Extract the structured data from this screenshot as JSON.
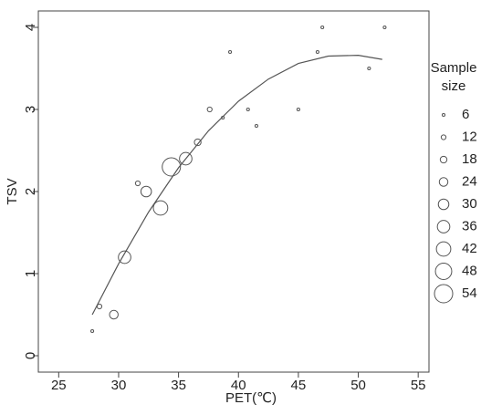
{
  "chart_data": {
    "type": "scatter",
    "xlabel": "PET(℃)",
    "ylabel": "TSV",
    "x": [
      27.8,
      28.4,
      29.6,
      30.5,
      31.6,
      32.3,
      33.5,
      34.4,
      35.6,
      36.6,
      37.6,
      38.7,
      39.3,
      40.8,
      41.5,
      45,
      46.6,
      47.0,
      50.9,
      52.2
    ],
    "y": [
      0.3,
      0.6,
      0.5,
      1.2,
      2.1,
      2.0,
      1.8,
      2.3,
      2.4,
      2.6,
      3.0,
      2.9,
      3.7,
      3.0,
      2.8,
      3.0,
      3.7,
      4.0,
      3.5,
      4.0
    ],
    "size": [
      6,
      12,
      24,
      36,
      12,
      30,
      42,
      54,
      36,
      18,
      12,
      6,
      6,
      6,
      6,
      6,
      6,
      6,
      6,
      6
    ],
    "fit": {
      "x": [
        27.8,
        30,
        32.5,
        35,
        37.5,
        40,
        42.5,
        45,
        47.5,
        50,
        52
      ],
      "y": [
        0.5,
        1.12,
        1.75,
        2.29,
        2.74,
        3.1,
        3.37,
        3.56,
        3.65,
        3.66,
        3.61
      ]
    },
    "xlim": [
      23.3,
      55.9
    ],
    "ylim": [
      -0.2,
      4.2
    ],
    "xticks": [
      25,
      30,
      35,
      40,
      45,
      50,
      55
    ],
    "yticks": [
      0,
      1,
      2,
      3,
      4
    ],
    "legend_title": [
      "Sample",
      "size"
    ],
    "legend_sizes": [
      6,
      12,
      18,
      24,
      30,
      36,
      42,
      48,
      54
    ]
  }
}
